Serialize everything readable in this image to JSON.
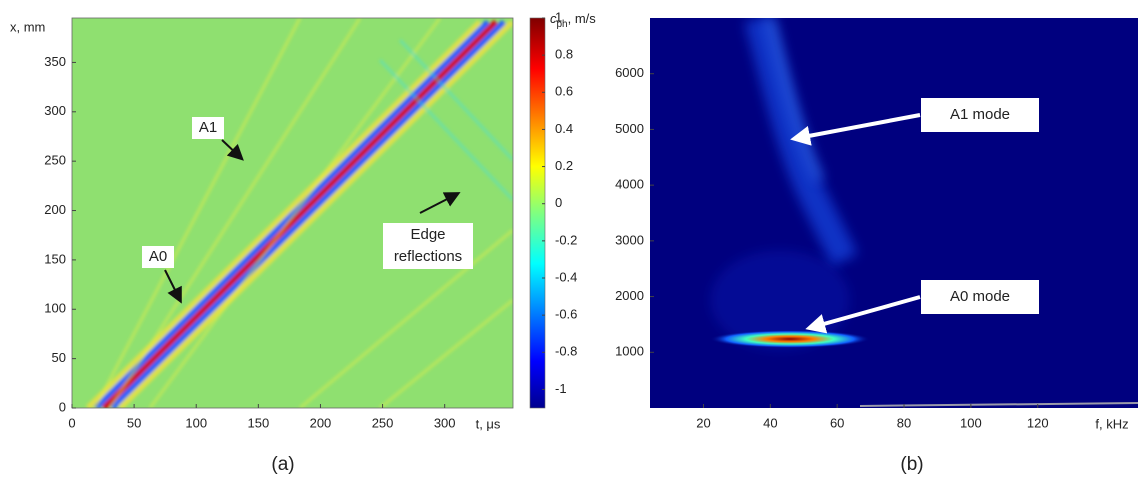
{
  "chart_data": [
    {
      "type": "heatmap",
      "caption": "(a)",
      "xlabel": "t, μs",
      "ylabel": "x, mm",
      "xlim": [
        0,
        355
      ],
      "xticks": [
        0,
        50,
        100,
        150,
        200,
        250,
        300
      ],
      "ylim": [
        0,
        395
      ],
      "yticks": [
        0,
        50,
        100,
        150,
        200,
        250,
        300,
        350
      ],
      "colorbar": {
        "lim": [
          -1.1,
          1
        ],
        "ticks": [
          1,
          0.8,
          0.6,
          0.4,
          0.2,
          0,
          -0.2,
          -0.4,
          -0.6,
          -0.8,
          -1
        ]
      },
      "annotations": [
        "A1",
        "A0",
        "Edge reflections"
      ]
    },
    {
      "type": "heatmap",
      "caption": "(b)",
      "xlabel": "f, kHz",
      "ylabel": [
        "c",
        "ph",
        ", m/s"
      ],
      "xlim": [
        4,
        150
      ],
      "xticks": [
        20,
        40,
        60,
        80,
        100,
        120
      ],
      "ylim": [
        0,
        7000
      ],
      "yticks": [
        1000,
        2000,
        3000,
        4000,
        5000,
        6000
      ],
      "annotations": [
        "A1 mode",
        "A0 mode"
      ]
    }
  ]
}
